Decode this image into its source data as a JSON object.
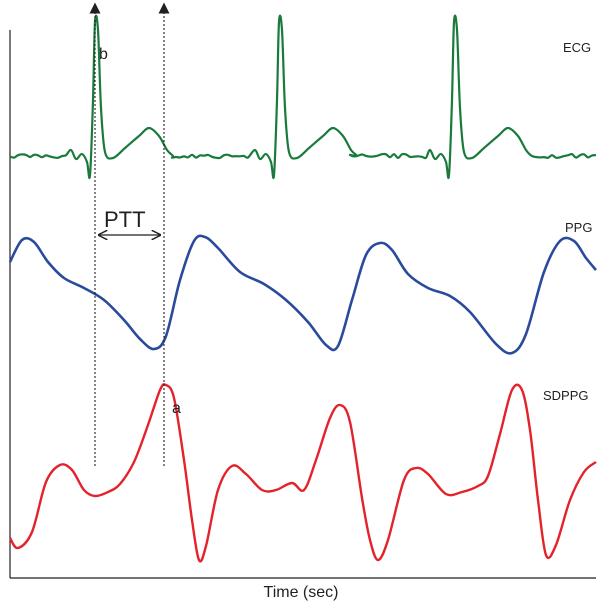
{
  "chart_data": {
    "type": "line",
    "xlabel": "Time (sec)",
    "grid": false,
    "axis_ticks": false,
    "series": [
      {
        "name": "ECG",
        "color": "#1a7a3c"
      },
      {
        "name": "PPG",
        "color": "#2a4a9c"
      },
      {
        "name": "SDPPG",
        "color": "#e3222b"
      }
    ],
    "annotations": {
      "ptt_label": "PTT",
      "point_b": "b",
      "point_a": "a"
    }
  }
}
